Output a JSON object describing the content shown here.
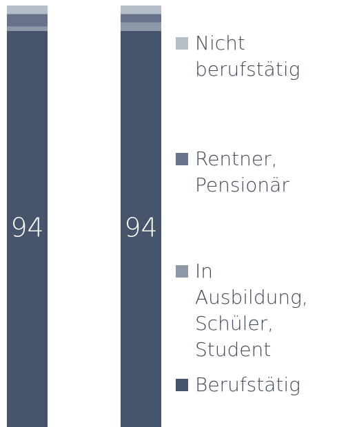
{
  "chart_data": {
    "type": "stacked-bar",
    "categories": [
      null,
      null
    ],
    "series": [
      {
        "name": "Berufstätig",
        "color": "#46556b",
        "values": [
          94,
          94
        ]
      },
      {
        "name": "In Ausbildung, Schüler, Student",
        "color": "#8e99a8",
        "values": [
          1,
          2
        ]
      },
      {
        "name": "Rentner, Pensionär",
        "color": "#66738a",
        "values": [
          3,
          2
        ]
      },
      {
        "name": "Nicht berufstätig",
        "color": "#b5bdc7",
        "values": [
          2,
          2
        ]
      }
    ],
    "value_labels_series": 0,
    "ylim": [
      0,
      100
    ]
  }
}
